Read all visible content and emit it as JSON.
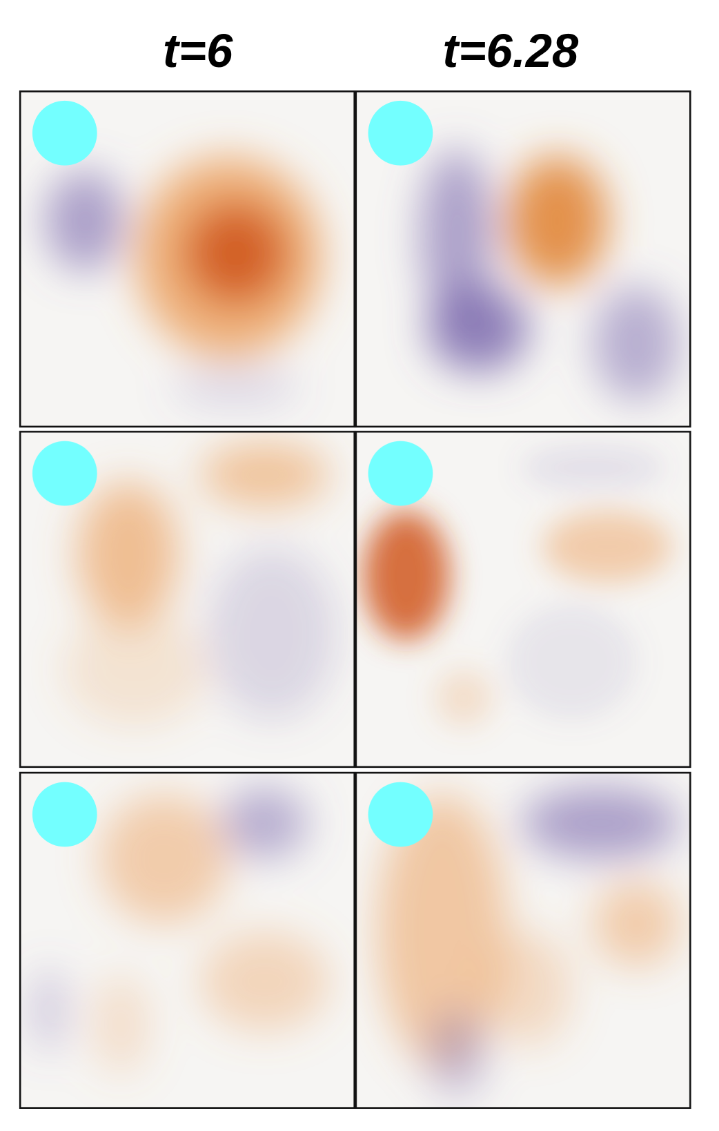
{
  "columns": [
    "t=6",
    "t=6.28"
  ]
}
